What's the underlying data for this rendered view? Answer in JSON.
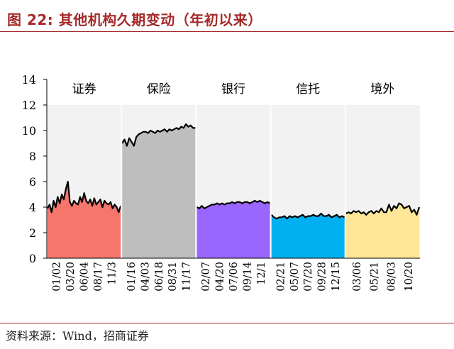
{
  "header": {
    "title": "图 22:  其他机构久期变动（年初以来）"
  },
  "footer": {
    "source": "资料来源：Wind，招商证券"
  },
  "chart_data": {
    "type": "area",
    "ylim": [
      0,
      14
    ],
    "yticks": [
      "0",
      "2",
      "4",
      "6",
      "8",
      "10",
      "12",
      "14"
    ],
    "grid": false,
    "panels": [
      {
        "name": "证券",
        "color": "#f7766c",
        "tick_labels": [
          "01/02",
          "03/20",
          "06/04",
          "08/17",
          "11/3"
        ],
        "values": [
          3.9,
          4.2,
          3.6,
          4.5,
          4.0,
          4.8,
          4.3,
          5.0,
          4.6,
          5.4,
          6.0,
          4.4,
          4.1,
          4.5,
          4.3,
          4.2,
          4.8,
          4.4,
          5.1,
          4.5,
          4.3,
          4.6,
          4.1,
          4.7,
          4.2,
          4.4,
          4.6,
          4.0,
          4.5,
          4.3,
          4.2,
          4.4,
          3.9,
          4.2,
          4.0,
          3.6,
          4.1
        ]
      },
      {
        "name": "保险",
        "color": "#bebebe",
        "tick_labels": [
          "01/16",
          "04/03",
          "06/18",
          "08/31",
          "11/17"
        ],
        "values": [
          9.0,
          9.3,
          8.8,
          9.4,
          9.1,
          8.8,
          9.5,
          9.7,
          9.8,
          9.9,
          9.9,
          9.8,
          10.0,
          9.9,
          9.8,
          10.0,
          9.9,
          10.0,
          10.1,
          9.9,
          10.1,
          10.0,
          10.1,
          10.2,
          10.1,
          10.3,
          10.2,
          10.5,
          10.3,
          10.4,
          10.2,
          10.2
        ]
      },
      {
        "name": "银行",
        "color": "#9966ff",
        "tick_labels": [
          "02/07",
          "04/20",
          "07/06",
          "09/14",
          "12/1"
        ],
        "values": [
          4.0,
          3.9,
          4.1,
          3.9,
          4.0,
          4.1,
          4.2,
          4.2,
          4.3,
          4.2,
          4.3,
          4.2,
          4.3,
          4.3,
          4.4,
          4.3,
          4.4,
          4.4,
          4.3,
          4.4,
          4.4,
          4.3,
          4.4,
          4.5,
          4.4,
          4.5,
          4.4,
          4.3,
          4.4,
          4.3
        ]
      },
      {
        "name": "信托",
        "color": "#00b0f0",
        "tick_labels": [
          "02/21",
          "05/07",
          "07/20",
          "09/28",
          "12/15"
        ],
        "values": [
          3.4,
          3.2,
          3.1,
          3.2,
          3.2,
          3.3,
          3.1,
          3.3,
          3.2,
          3.3,
          3.2,
          3.3,
          3.4,
          3.2,
          3.3,
          3.3,
          3.4,
          3.3,
          3.3,
          3.5,
          3.3,
          3.3,
          3.4,
          3.2,
          3.3,
          3.4,
          3.2,
          3.3,
          3.2
        ]
      },
      {
        "name": "境外",
        "color": "#ffe699",
        "tick_labels": [
          "03/06",
          "05/21",
          "08/03",
          "10/20"
        ],
        "values": [
          3.5,
          3.6,
          3.5,
          3.7,
          3.6,
          3.7,
          3.5,
          3.6,
          3.4,
          3.6,
          3.7,
          3.5,
          3.7,
          3.6,
          3.9,
          3.6,
          3.6,
          4.2,
          3.7,
          4.1,
          3.9,
          4.3,
          4.2,
          3.9,
          4.0,
          4.1,
          3.6,
          3.8,
          3.4,
          4.0
        ]
      }
    ]
  }
}
